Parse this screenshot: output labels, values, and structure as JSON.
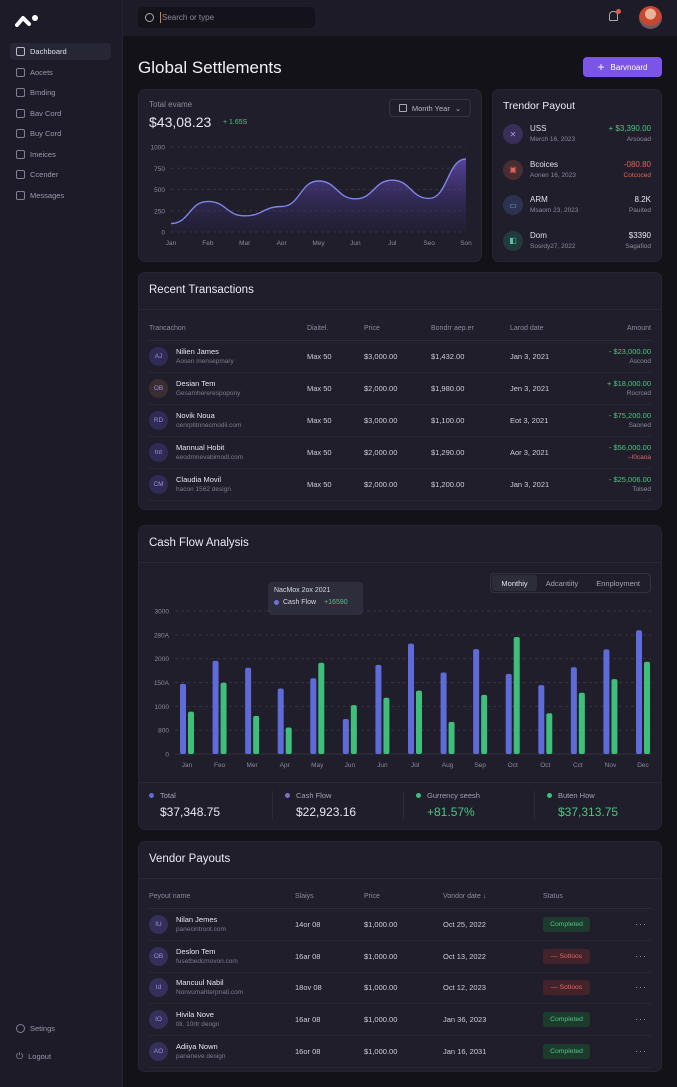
{
  "sidebar": {
    "items": [
      {
        "label": "Dachboard",
        "active": true
      },
      {
        "label": "Aocets"
      },
      {
        "label": "Bmding"
      },
      {
        "label": "Bav Cord"
      },
      {
        "label": "Buy Cord"
      },
      {
        "label": "Imeices"
      },
      {
        "label": "Ccender"
      },
      {
        "label": "Messages"
      }
    ],
    "settings": "Setings",
    "logout": "Logout"
  },
  "topbar": {
    "search_placeholder": "Search or type"
  },
  "page": {
    "title": "Global Settlements",
    "primary_button": "Barvnoard"
  },
  "overview": {
    "label": "Total evame",
    "value": "$43,08.23",
    "change": "+ 1.65S",
    "range_button": "Month Year",
    "chart_data": {
      "type": "area",
      "x": [
        "Jan",
        "Feb",
        "Mar",
        "Aor",
        "Mey",
        "Jun",
        "Jul",
        "Seo",
        "Son"
      ],
      "values": [
        100,
        360,
        190,
        300,
        600,
        390,
        610,
        395,
        860
      ],
      "yticks": [
        "1000",
        "750",
        "500",
        "250",
        "0"
      ],
      "ylim": [
        0,
        1000
      ]
    }
  },
  "trend_payout": {
    "title": "Trendor Payout",
    "items": [
      {
        "icon": "✕",
        "name": "USS",
        "date": "Merch 16, 2023",
        "amount": "+ $3,390.00",
        "status": "Arsooad",
        "tone": "green",
        "color": "#3a2e5a",
        "fg": "#a996e6"
      },
      {
        "icon": "▣",
        "name": "Bcoices",
        "date": "Aonen 16, 2023",
        "amount": "-080.80",
        "status": "Cotcoced",
        "tone": "red",
        "color": "#4a2d33",
        "fg": "#e2645c"
      },
      {
        "icon": "▭",
        "name": "ARM",
        "date": "Msaom 23, 2023",
        "amount": "8.2K",
        "status": "Pauited",
        "tone": "white",
        "color": "#2b3350",
        "fg": "#7f9ae6"
      },
      {
        "icon": "◧",
        "name": "Dom",
        "date": "Sosrdy27, 2022",
        "amount": "$3390",
        "status": "Sagafiod",
        "tone": "white",
        "color": "#233a3a",
        "fg": "#4cc5a5"
      }
    ]
  },
  "transactions": {
    "title": "Recent Transactions",
    "headers": [
      "Trancachon",
      "Diaitel.",
      "Price",
      "Bondrr aep.er",
      "Larod date",
      "Amount"
    ],
    "rows": [
      {
        "initials": "AJ",
        "name": "Nilien James",
        "sub": "Aosen mensepmary",
        "d": "Max 50",
        "price": "$3,000.00",
        "b": "$1,432.00",
        "date": "Jan 3, 2021",
        "amount": "- $23,000.00",
        "status": "Ascood",
        "st": "muted",
        "avc": "#2f2b55"
      },
      {
        "initials": "OB",
        "name": "Desian Tem",
        "sub": "Gesamhererespopony",
        "d": "Max 50",
        "price": "$2,000.00",
        "b": "$1,980.00",
        "date": "Jen 3, 2021",
        "amount": "+ $18,000.00",
        "status": "Rocrced",
        "st": "muted",
        "avc": "#3a2d33"
      },
      {
        "initials": "RD",
        "name": "Novik Noua",
        "sub": "oenrptitnnecmodil.com",
        "d": "Max 50",
        "price": "$3,000.00",
        "b": "$1,100.00",
        "date": "Eot 3, 2021",
        "amount": "- $75,200.00",
        "status": "Saoned",
        "st": "muted",
        "avc": "#2f2b55"
      },
      {
        "initials": "tnt",
        "name": "Mannual Hobit",
        "sub": "eeodmnevabimodl.com",
        "d": "Max 50",
        "price": "$2,000.00",
        "b": "$1,290.00",
        "date": "Aor 3, 2021",
        "amount": "- $56,000.00",
        "status": "--l0caoa",
        "st": "red",
        "avc": "#2f2b55"
      },
      {
        "initials": "CM",
        "name": "Claudia Movil",
        "sub": "hacon 1562 design",
        "d": "Max 50",
        "price": "$2,000.00",
        "b": "$1,200.00",
        "date": "Jan 3, 2021",
        "amount": "- $25,006.00",
        "status": "Tolsed",
        "st": "muted",
        "avc": "#2f2b55"
      }
    ]
  },
  "cashflow": {
    "title": "Cash Flow Analysis",
    "tabs": [
      "Monthiy",
      "Adcantiity",
      "Ennployment"
    ],
    "tooltip": {
      "title": "NacMox 2ox 2021",
      "label": "Cash Flow",
      "value": "+16590"
    },
    "chart_data": {
      "type": "bar",
      "categories": [
        "Jan",
        "Feo",
        "Mer",
        "Apr",
        "May",
        "Jun",
        "Jun",
        "Jol",
        "Aug",
        "Sep",
        "Oct",
        "Oct",
        "Cct",
        "Nov",
        "Dec"
      ],
      "yticks": [
        "0",
        "800",
        "1000",
        "150A",
        "2000",
        "280A",
        "3000"
      ],
      "ylim": [
        0,
        3000
      ],
      "series": [
        {
          "name": "Cash Flow",
          "color": "#5f6bd8",
          "values": [
            1470,
            1955,
            1810,
            1375,
            1590,
            735,
            1870,
            2315,
            1710,
            2200,
            1680,
            1445,
            1820,
            2195,
            2595
          ]
        },
        {
          "name": "Currency",
          "color": "#3fbf7a",
          "values": [
            890,
            1495,
            800,
            555,
            1915,
            1025,
            1180,
            1330,
            675,
            1240,
            2455,
            855,
            1285,
            1570,
            1935
          ]
        }
      ]
    },
    "stats": [
      {
        "label": "Total",
        "value": "$37,348.75",
        "dot": "#5f6bd8",
        "tone": "white"
      },
      {
        "label": "Cash Flow",
        "value": "$22,923.16",
        "dot": "#7a70c8",
        "tone": "white"
      },
      {
        "label": "Gurrency seesh",
        "value": "+81.57%",
        "dot": "#3fbf7a",
        "tone": "green"
      },
      {
        "label": "Buten How",
        "value": "$37,313.75",
        "dot": "#3fbf7a",
        "tone": "green"
      }
    ]
  },
  "vendor": {
    "title": "Vendor Payouts",
    "headers": [
      "Peyout name",
      "Slaiys",
      "Price",
      "Vondor date ↓",
      "Status"
    ],
    "rows": [
      {
        "initials": "IU",
        "name": "Nilan Jemes",
        "sub": "panecintroot.com",
        "s": "14or 08",
        "price": "$1,000.00",
        "date": "Oct 25, 2022",
        "status": "Completed",
        "ok": true
      },
      {
        "initials": "OB",
        "name": "Deslon Tem",
        "sub": "fusetbedcmovon.com",
        "s": "16ar 08",
        "price": "$1,000.00",
        "date": "Oct 13, 2022",
        "status": "— Sotloos",
        "ok": false
      },
      {
        "initials": "Id",
        "name": "Mancuul Nabil",
        "sub": "Nonvumahterpnati.com",
        "s": "18ov 08",
        "price": "$1,000.00",
        "date": "Oct 12, 2023",
        "status": "— Sotloos",
        "ok": false
      },
      {
        "initials": "IO",
        "name": "Hivila Nove",
        "sub": "titi. 10rtr deogn",
        "s": "16ar 08",
        "price": "$1,000.00",
        "date": "Jan 36, 2023",
        "status": "Completed",
        "ok": true
      },
      {
        "initials": "AO",
        "name": "Adiiya Nown",
        "sub": "pananeve design",
        "s": "16or 08",
        "price": "$1,000.00",
        "date": "Jan 16, 2031",
        "status": "Completed",
        "ok": true
      }
    ]
  }
}
